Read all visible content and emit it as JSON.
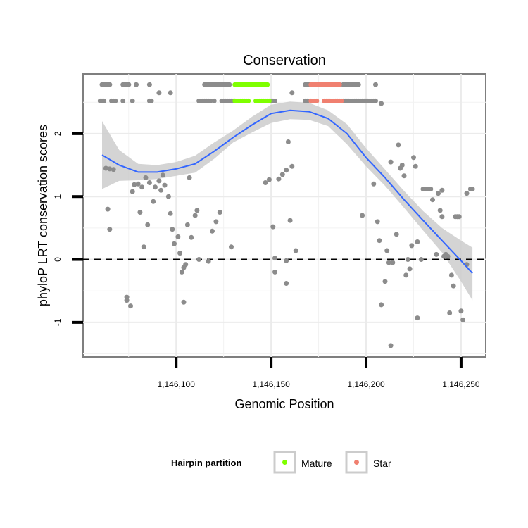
{
  "chart_data": {
    "type": "scatter",
    "title": "Conservation",
    "xlabel": "Genomic Position",
    "ylabel": "phyloP LRT conservation scores",
    "xlim": [
      1146051,
      1146263
    ],
    "ylim": [
      -1.55,
      2.95
    ],
    "x_ticks": [
      1146100,
      1146150,
      1146200,
      1146250
    ],
    "x_tick_labels": [
      "1,146,100",
      "1,146,150",
      "1,146,200",
      "1,146,250"
    ],
    "y_ticks": [
      -1,
      0,
      1,
      2
    ],
    "y_tick_labels": [
      "-1",
      "0",
      "1",
      "2"
    ],
    "reference_line": {
      "y": 0,
      "style": "dashed",
      "color": "#000000"
    },
    "legend": {
      "title": "Hairpin partition",
      "position": "bottom",
      "entries": [
        {
          "name": "Mature",
          "color": "#7fff00"
        },
        {
          "name": "Star",
          "color": "#f08070"
        }
      ]
    },
    "colors": {
      "other": "#8c8c8c",
      "mature": "#7fff00",
      "star": "#f08070",
      "smooth": "#3366ff",
      "band": "#cccccc"
    },
    "series": [
      {
        "name": "Other",
        "color": "#8c8c8c",
        "ranges": [
          {
            "x0": 1146061,
            "x1": 1146065,
            "y": 2.78
          },
          {
            "x0": 1146072,
            "x1": 1146075,
            "y": 2.78
          },
          {
            "x0": 1146079,
            "x1": 1146079,
            "y": 2.78
          },
          {
            "x0": 1146086,
            "x1": 1146086,
            "y": 2.78
          },
          {
            "x0": 1146115,
            "x1": 1146128,
            "y": 2.78
          },
          {
            "x0": 1146168,
            "x1": 1146170,
            "y": 2.78
          },
          {
            "x0": 1146188,
            "x1": 1146196,
            "y": 2.78
          },
          {
            "x0": 1146205,
            "x1": 1146205,
            "y": 2.78
          },
          {
            "x0": 1146060,
            "x1": 1146062,
            "y": 2.52
          },
          {
            "x0": 1146066,
            "x1": 1146068,
            "y": 2.52
          },
          {
            "x0": 1146072,
            "x1": 1146072,
            "y": 2.52
          },
          {
            "x0": 1146077,
            "x1": 1146077,
            "y": 2.52
          },
          {
            "x0": 1146086,
            "x1": 1146087,
            "y": 2.52
          },
          {
            "x0": 1146112,
            "x1": 1146118,
            "y": 2.52
          },
          {
            "x0": 1146120,
            "x1": 1146120,
            "y": 2.52
          },
          {
            "x0": 1146124,
            "x1": 1146131,
            "y": 2.52
          },
          {
            "x0": 1146150,
            "x1": 1146152,
            "y": 2.52
          },
          {
            "x0": 1146168,
            "x1": 1146169,
            "y": 2.52
          },
          {
            "x0": 1146188,
            "x1": 1146205,
            "y": 2.52
          }
        ],
        "points": [
          {
            "x": 1146091,
            "y": 2.65
          },
          {
            "x": 1146097,
            "y": 2.65
          },
          {
            "x": 1146161,
            "y": 2.65
          },
          {
            "x": 1146208,
            "y": 2.48
          },
          {
            "x": 1146063,
            "y": 1.45
          },
          {
            "x": 1146065,
            "y": 1.44
          },
          {
            "x": 1146067,
            "y": 1.43
          },
          {
            "x": 1146064,
            "y": 0.8
          },
          {
            "x": 1146065,
            "y": 0.48
          },
          {
            "x": 1146074,
            "y": -0.6
          },
          {
            "x": 1146074,
            "y": -0.65
          },
          {
            "x": 1146076,
            "y": -0.74
          },
          {
            "x": 1146077,
            "y": 1.08
          },
          {
            "x": 1146078,
            "y": 1.19
          },
          {
            "x": 1146080,
            "y": 1.2
          },
          {
            "x": 1146081,
            "y": 0.75
          },
          {
            "x": 1146083,
            "y": 0.2
          },
          {
            "x": 1146085,
            "y": 0.55
          },
          {
            "x": 1146082,
            "y": 1.15
          },
          {
            "x": 1146084,
            "y": 1.3
          },
          {
            "x": 1146086,
            "y": 1.22
          },
          {
            "x": 1146088,
            "y": 0.92
          },
          {
            "x": 1146089,
            "y": 1.15
          },
          {
            "x": 1146091,
            "y": 1.25
          },
          {
            "x": 1146092,
            "y": 1.1
          },
          {
            "x": 1146093,
            "y": 1.34
          },
          {
            "x": 1146094,
            "y": 1.18
          },
          {
            "x": 1146096,
            "y": 1.0
          },
          {
            "x": 1146097,
            "y": 0.73
          },
          {
            "x": 1146098,
            "y": 0.48
          },
          {
            "x": 1146099,
            "y": 0.25
          },
          {
            "x": 1146101,
            "y": 0.36
          },
          {
            "x": 1146102,
            "y": 0.1
          },
          {
            "x": 1146103,
            "y": -0.2
          },
          {
            "x": 1146104,
            "y": -0.13
          },
          {
            "x": 1146105,
            "y": -0.08
          },
          {
            "x": 1146104,
            "y": -0.68
          },
          {
            "x": 1146106,
            "y": 0.55
          },
          {
            "x": 1146107,
            "y": 1.3
          },
          {
            "x": 1146108,
            "y": 0.35
          },
          {
            "x": 1146110,
            "y": 0.7
          },
          {
            "x": 1146111,
            "y": 0.78
          },
          {
            "x": 1146112,
            "y": 0.0
          },
          {
            "x": 1146117,
            "y": -0.03
          },
          {
            "x": 1146119,
            "y": 0.45
          },
          {
            "x": 1146121,
            "y": 0.6
          },
          {
            "x": 1146123,
            "y": 0.75
          },
          {
            "x": 1146129,
            "y": 0.2
          },
          {
            "x": 1146147,
            "y": 1.22
          },
          {
            "x": 1146149,
            "y": 1.27
          },
          {
            "x": 1146151,
            "y": 0.52
          },
          {
            "x": 1146152,
            "y": 0.02
          },
          {
            "x": 1146152,
            "y": -0.2
          },
          {
            "x": 1146154,
            "y": 1.28
          },
          {
            "x": 1146156,
            "y": 1.35
          },
          {
            "x": 1146158,
            "y": 1.42
          },
          {
            "x": 1146158,
            "y": -0.38
          },
          {
            "x": 1146158,
            "y": -0.02
          },
          {
            "x": 1146159,
            "y": 1.87
          },
          {
            "x": 1146160,
            "y": 0.62
          },
          {
            "x": 1146161,
            "y": 1.48
          },
          {
            "x": 1146163,
            "y": 0.14
          },
          {
            "x": 1146198,
            "y": 0.7
          },
          {
            "x": 1146204,
            "y": 1.2
          },
          {
            "x": 1146206,
            "y": 0.6
          },
          {
            "x": 1146207,
            "y": 0.3
          },
          {
            "x": 1146208,
            "y": -0.72
          },
          {
            "x": 1146210,
            "y": -0.35
          },
          {
            "x": 1146211,
            "y": 0.14
          },
          {
            "x": 1146212,
            "y": -0.05
          },
          {
            "x": 1146213,
            "y": -1.37
          },
          {
            "x": 1146213,
            "y": 1.55
          },
          {
            "x": 1146214,
            "y": -0.05
          },
          {
            "x": 1146216,
            "y": 0.4
          },
          {
            "x": 1146217,
            "y": 1.82
          },
          {
            "x": 1146218,
            "y": 1.45
          },
          {
            "x": 1146219,
            "y": 1.5
          },
          {
            "x": 1146220,
            "y": 1.33
          },
          {
            "x": 1146221,
            "y": -0.25
          },
          {
            "x": 1146222,
            "y": 0.0
          },
          {
            "x": 1146223,
            "y": -0.15
          },
          {
            "x": 1146224,
            "y": 0.22
          },
          {
            "x": 1146225,
            "y": 1.62
          },
          {
            "x": 1146226,
            "y": 1.48
          },
          {
            "x": 1146227,
            "y": 0.28
          },
          {
            "x": 1146227,
            "y": -0.93
          },
          {
            "x": 1146229,
            "y": 0.0
          },
          {
            "x": 1146230,
            "y": 1.12
          },
          {
            "x": 1146231,
            "y": 1.12
          },
          {
            "x": 1146232,
            "y": 1.12
          },
          {
            "x": 1146233,
            "y": 1.12
          },
          {
            "x": 1146234,
            "y": 1.12
          },
          {
            "x": 1146235,
            "y": 0.95
          },
          {
            "x": 1146237,
            "y": 0.08
          },
          {
            "x": 1146238,
            "y": 1.05
          },
          {
            "x": 1146239,
            "y": 0.78
          },
          {
            "x": 1146240,
            "y": 0.68
          },
          {
            "x": 1146240,
            "y": 1.1
          },
          {
            "x": 1146241,
            "y": 0.05
          },
          {
            "x": 1146242,
            "y": 0.08
          },
          {
            "x": 1146243,
            "y": 0.05
          },
          {
            "x": 1146244,
            "y": -0.85
          },
          {
            "x": 1146245,
            "y": -0.25
          },
          {
            "x": 1146246,
            "y": -0.42
          },
          {
            "x": 1146247,
            "y": 0.68
          },
          {
            "x": 1146248,
            "y": 0.68
          },
          {
            "x": 1146249,
            "y": 0.68
          },
          {
            "x": 1146250,
            "y": -0.82
          },
          {
            "x": 1146251,
            "y": -0.96
          },
          {
            "x": 1146253,
            "y": 1.05
          },
          {
            "x": 1146255,
            "y": 1.12
          },
          {
            "x": 1146256,
            "y": 1.12
          },
          {
            "x": 1146253,
            "y": -0.08
          }
        ]
      },
      {
        "name": "Mature",
        "color": "#7fff00",
        "ranges": [
          {
            "x0": 1146131,
            "x1": 1146148,
            "y": 2.78
          },
          {
            "x0": 1146131,
            "x1": 1146138,
            "y": 2.52
          },
          {
            "x0": 1146142,
            "x1": 1146149,
            "y": 2.52
          }
        ],
        "points": []
      },
      {
        "name": "Star",
        "color": "#f08070",
        "ranges": [
          {
            "x0": 1146171,
            "x1": 1146186,
            "y": 2.78
          },
          {
            "x0": 1146171,
            "x1": 1146174,
            "y": 2.52
          },
          {
            "x0": 1146178,
            "x1": 1146187,
            "y": 2.52
          }
        ],
        "points": []
      }
    ],
    "smooth": {
      "name": "Loess fit",
      "x": [
        1146061,
        1146070,
        1146080,
        1146090,
        1146100,
        1146110,
        1146120,
        1146130,
        1146140,
        1146150,
        1146160,
        1146170,
        1146180,
        1146190,
        1146200,
        1146210,
        1146220,
        1146230,
        1146240,
        1146250,
        1146256
      ],
      "y": [
        1.66,
        1.5,
        1.39,
        1.39,
        1.44,
        1.52,
        1.72,
        1.94,
        2.14,
        2.32,
        2.37,
        2.35,
        2.24,
        2.0,
        1.62,
        1.3,
        0.95,
        0.62,
        0.3,
        -0.02,
        -0.22
      ],
      "lower": [
        1.12,
        1.25,
        1.26,
        1.28,
        1.33,
        1.38,
        1.6,
        1.86,
        2.02,
        2.17,
        2.23,
        2.22,
        2.12,
        1.83,
        1.48,
        1.17,
        0.82,
        0.46,
        0.11,
        -0.35,
        -0.65
      ],
      "upper": [
        2.2,
        1.74,
        1.52,
        1.5,
        1.55,
        1.65,
        1.86,
        2.05,
        2.27,
        2.46,
        2.51,
        2.49,
        2.37,
        2.15,
        1.77,
        1.43,
        1.09,
        0.77,
        0.5,
        0.3,
        0.19
      ]
    }
  }
}
